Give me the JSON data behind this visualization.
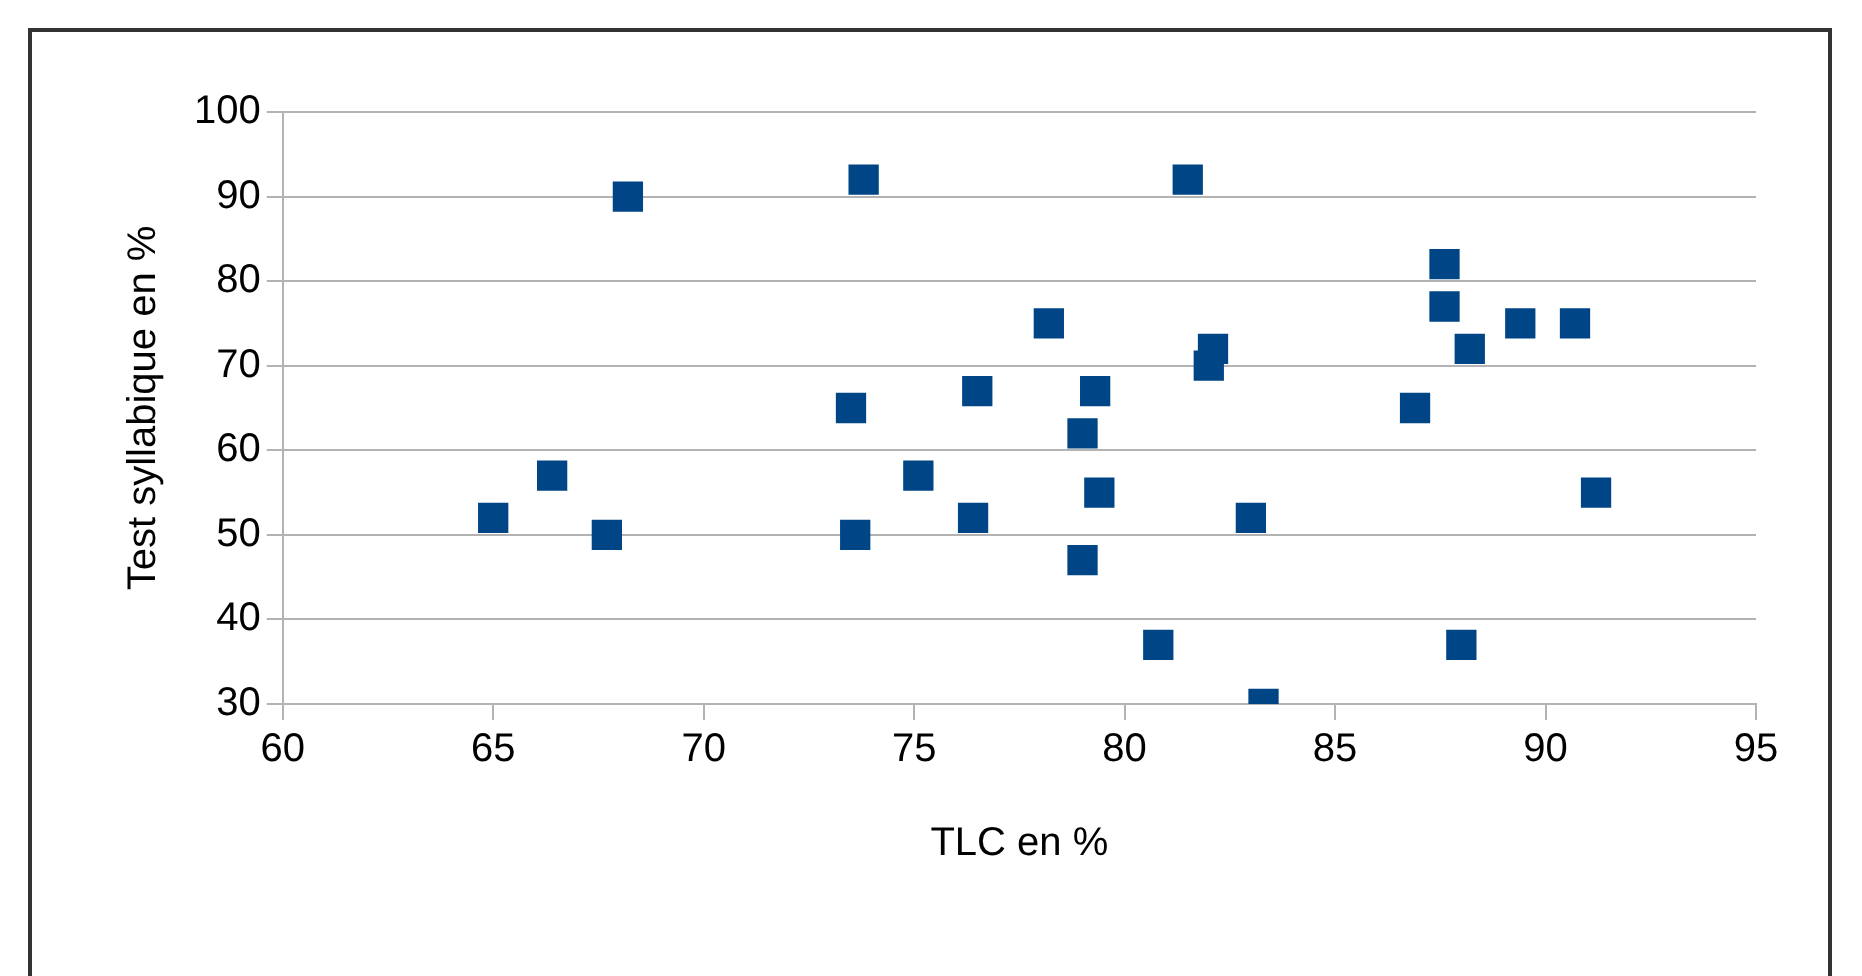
{
  "chart_data": {
    "type": "scatter",
    "xlabel": "TLC en %",
    "ylabel": "Test syllabique en %",
    "x": [
      65.0,
      66.4,
      67.7,
      68.2,
      73.5,
      73.6,
      73.8,
      75.1,
      76.4,
      76.5,
      78.2,
      79.0,
      79.0,
      79.3,
      79.4,
      80.8,
      81.5,
      82.0,
      82.1,
      83.0,
      83.3,
      86.9,
      87.6,
      87.6,
      88.2,
      88.0,
      89.4,
      90.7,
      91.2
    ],
    "values": [
      52,
      57,
      50,
      90,
      65,
      50,
      92,
      57,
      52,
      67,
      75,
      62,
      47,
      67,
      55,
      37,
      92,
      70,
      72,
      52,
      30,
      65,
      82,
      77,
      72,
      37,
      75,
      75,
      55
    ],
    "color": "#004586",
    "marker": "square",
    "xlim": [
      60,
      95
    ],
    "xticks": [
      60,
      65,
      70,
      75,
      80,
      85,
      90,
      95
    ],
    "ylim": [
      30,
      100
    ],
    "yticks": [
      30,
      40,
      50,
      60,
      70,
      80,
      90,
      100
    ],
    "grid": "y",
    "legend": false
  }
}
